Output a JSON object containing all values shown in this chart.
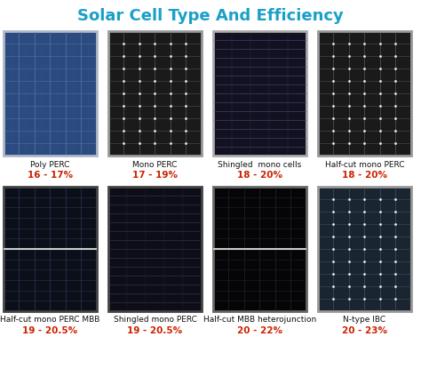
{
  "title": "Solar Cell Type And Efficiency",
  "title_color": "#1aa0c8",
  "title_fontsize": 13,
  "background_color": "#ffffff",
  "cells": [
    {
      "name": "Poly PERC",
      "efficiency": "16 - 17%",
      "row": 0,
      "col": 0,
      "panel_color": "#2a4a80",
      "grid_color": "#6080b0",
      "frame_color": "#b0b8c8",
      "has_halfcut": false,
      "shingled": false,
      "style": "poly"
    },
    {
      "name": "Mono PERC",
      "efficiency": "17 - 19%",
      "row": 0,
      "col": 1,
      "panel_color": "#1a1a1a",
      "grid_color": "#666666",
      "frame_color": "#999999",
      "has_halfcut": false,
      "shingled": false,
      "style": "mono"
    },
    {
      "name": "Shingled  mono cells",
      "efficiency": "18 - 20%",
      "row": 0,
      "col": 2,
      "panel_color": "#111122",
      "grid_color": "#444466",
      "frame_color": "#aaaaaa",
      "has_halfcut": false,
      "shingled": true,
      "style": "shingled"
    },
    {
      "name": "Half-cut mono PERC",
      "efficiency": "18 - 20%",
      "row": 0,
      "col": 3,
      "panel_color": "#1a1a1a",
      "grid_color": "#666666",
      "frame_color": "#999999",
      "has_halfcut": false,
      "shingled": false,
      "style": "mono"
    },
    {
      "name": "Half-cut mono PERC MBB",
      "efficiency": "19 - 20.5%",
      "row": 1,
      "col": 0,
      "panel_color": "#0a0f1a",
      "grid_color": "#334466",
      "frame_color": "#444444",
      "has_halfcut": true,
      "shingled": false,
      "style": "halfcut"
    },
    {
      "name": "Shingled mono PERC",
      "efficiency": "19 - 20.5%",
      "row": 1,
      "col": 1,
      "panel_color": "#0d0d18",
      "grid_color": "#333355",
      "frame_color": "#444444",
      "has_halfcut": false,
      "shingled": true,
      "style": "shingled"
    },
    {
      "name": "Half-cut MBB heterojunction",
      "efficiency": "20 - 22%",
      "row": 1,
      "col": 2,
      "panel_color": "#050508",
      "grid_color": "#2a2a3a",
      "frame_color": "#666666",
      "has_halfcut": true,
      "shingled": false,
      "style": "halfcut_dark"
    },
    {
      "name": "N-type IBC",
      "efficiency": "20 - 23%",
      "row": 1,
      "col": 3,
      "panel_color": "#1a2530",
      "grid_color": "#4a6080",
      "frame_color": "#999999",
      "has_halfcut": false,
      "shingled": false,
      "style": "ntype"
    }
  ],
  "efficiency_color": "#cc2200",
  "name_color": "#111111",
  "name_fontsize": 6.5,
  "efficiency_fontsize": 7.5
}
